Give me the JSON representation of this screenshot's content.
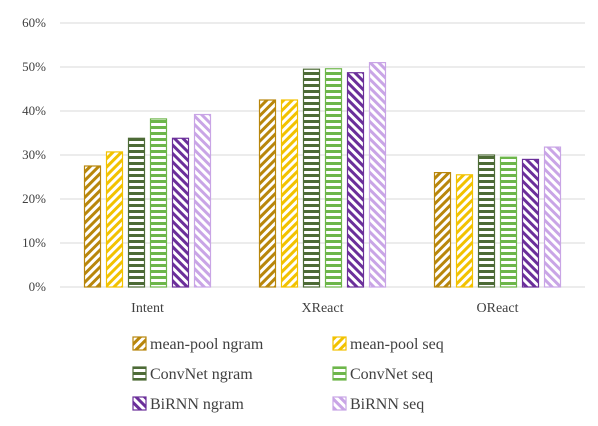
{
  "chart_data": {
    "type": "bar",
    "title": "",
    "xlabel": "",
    "ylabel": "",
    "categories": [
      "Intent",
      "XReact",
      "OReact"
    ],
    "ylim": [
      0,
      60
    ],
    "yticks": [
      "0%",
      "10%",
      "20%",
      "30%",
      "40%",
      "50%",
      "60%"
    ],
    "grid": true,
    "legend_position": "bottom",
    "series": [
      {
        "name": "mean-pool ngram",
        "values": [
          27.5,
          42.5,
          26.0
        ],
        "color": "#b8860b",
        "pattern": "diag-down"
      },
      {
        "name": "mean-pool seq",
        "values": [
          30.7,
          42.5,
          25.5
        ],
        "color": "#f2c200",
        "pattern": "diag-down"
      },
      {
        "name": "ConvNet ngram",
        "values": [
          33.8,
          49.5,
          30.0
        ],
        "color": "#4d6b36",
        "pattern": "horizontal"
      },
      {
        "name": "ConvNet seq",
        "values": [
          38.2,
          49.6,
          29.5
        ],
        "color": "#6db64a",
        "pattern": "horizontal"
      },
      {
        "name": "BiRNN ngram",
        "values": [
          33.8,
          48.7,
          29.0
        ],
        "color": "#6b2f9a",
        "pattern": "diag-up"
      },
      {
        "name": "BiRNN seq",
        "values": [
          39.2,
          51.0,
          31.8
        ],
        "color": "#c9a5e6",
        "pattern": "diag-up"
      }
    ]
  }
}
